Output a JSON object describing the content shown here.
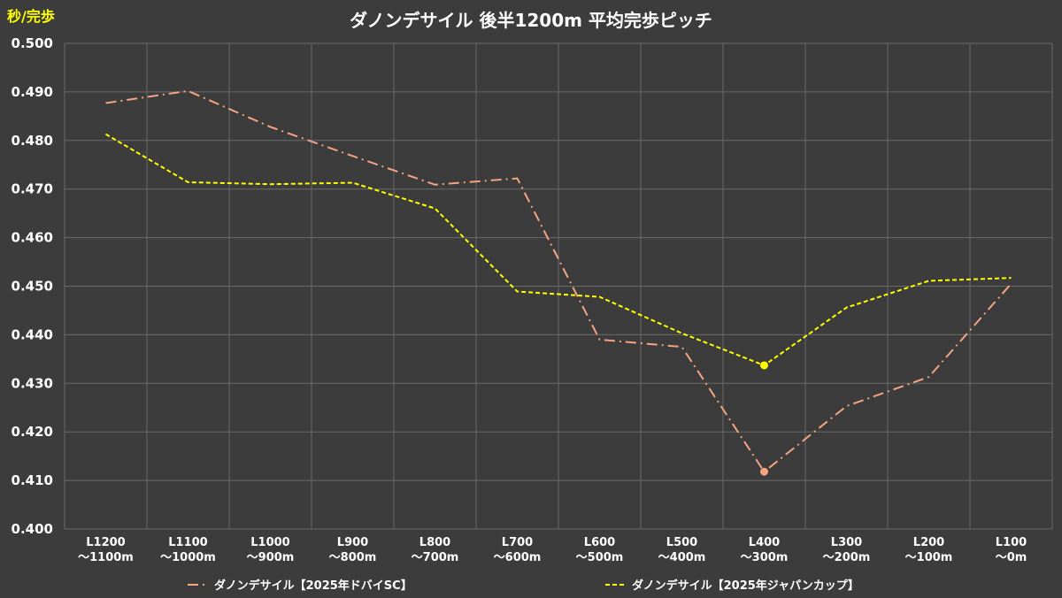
{
  "chart_data": {
    "type": "line",
    "title": "ダノンデサイル 後半1200m 平均完歩ピッチ",
    "y_unit_label": "秒/完歩",
    "ylim": [
      0.4,
      0.5
    ],
    "yticks": [
      "0.400",
      "0.410",
      "0.420",
      "0.430",
      "0.440",
      "0.450",
      "0.460",
      "0.470",
      "0.480",
      "0.490",
      "0.500"
    ],
    "categories": [
      [
        "L1200",
        "〜1100m"
      ],
      [
        "L1100",
        "〜1000m"
      ],
      [
        "L1000",
        "〜900m"
      ],
      [
        "L900",
        "〜800m"
      ],
      [
        "L800",
        "〜700m"
      ],
      [
        "L700",
        "〜600m"
      ],
      [
        "L600",
        "〜500m"
      ],
      [
        "L500",
        "〜400m"
      ],
      [
        "L400",
        "〜300m"
      ],
      [
        "L300",
        "〜200m"
      ],
      [
        "L200",
        "〜100m"
      ],
      [
        "L100",
        "〜0m"
      ]
    ],
    "grid": true,
    "legend_position": "bottom",
    "series": [
      {
        "name": "ダノンデサイル【2025年ドバイSC】",
        "color": "#f4a582",
        "dash": "dash-dot",
        "values": [
          0.4877,
          0.4902,
          0.4828,
          0.4768,
          0.4709,
          0.4722,
          0.439,
          0.4375,
          0.4118,
          0.4253,
          0.4313,
          0.4505
        ],
        "marker_index": 8
      },
      {
        "name": "ダノンデサイル【2025年ジャパンカップ】",
        "color": "#ffff00",
        "dash": "dashed",
        "values": [
          0.4813,
          0.4714,
          0.471,
          0.4713,
          0.466,
          0.4489,
          0.4478,
          0.4403,
          0.4337,
          0.4456,
          0.4511,
          0.4517
        ],
        "marker_index": 8
      }
    ]
  }
}
